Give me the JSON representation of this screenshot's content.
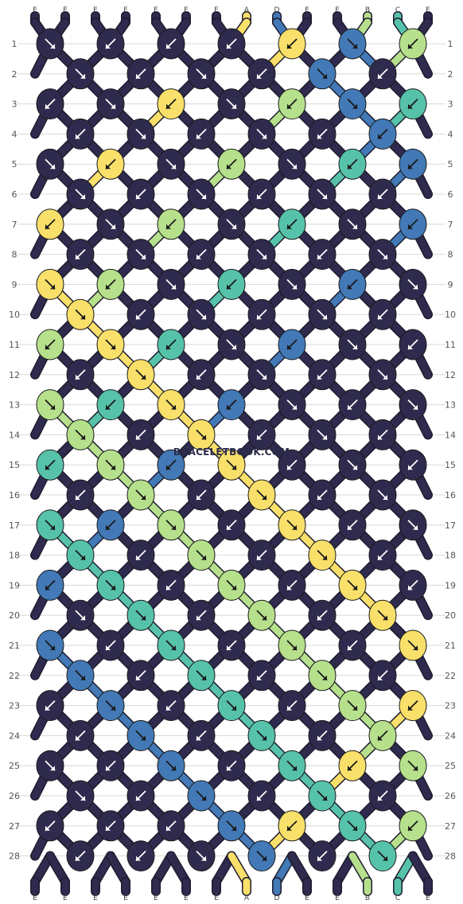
{
  "colors": {
    "E": "#2f2b4e",
    "A": "#f9e06a",
    "D": "#4279b6",
    "B": "#b6e08c",
    "C": "#57c2aa"
  },
  "top_labels": [
    "E",
    "E",
    "E",
    "E",
    "E",
    "E",
    "E",
    "A",
    "D",
    "E",
    "E",
    "B",
    "C",
    "E"
  ],
  "bottom_labels": [
    "E",
    "E",
    "E",
    "E",
    "E",
    "E",
    "E",
    "A",
    "D",
    "E",
    "E",
    "B",
    "C",
    "E"
  ],
  "row_numbers": [
    "1",
    "2",
    "3",
    "4",
    "5",
    "6",
    "7",
    "8",
    "9",
    "10",
    "11",
    "12",
    "13",
    "14",
    "15",
    "16",
    "17",
    "18",
    "19",
    "20",
    "21",
    "22",
    "23",
    "24",
    "25",
    "26",
    "27",
    "28"
  ],
  "watermark": "BRACELETBOOK.COM",
  "knots": [
    [
      "E:rd",
      "E:ld",
      "E:ld",
      "E:ld",
      "A:ld",
      "D:rd",
      "B:ld"
    ],
    [
      "E:rd",
      "E:ld",
      "E:rd",
      "E:ld",
      "D:rd",
      "E:ld"
    ],
    [
      "E:ld",
      "E:rd",
      "A:ld",
      "E:rd",
      "B:ld",
      "D:rd",
      "C:ld"
    ],
    [
      "E:ld",
      "E:rd",
      "E:ld",
      "E:rd",
      "E:ld",
      "D:ld"
    ],
    [
      "E:rd",
      "A:ld",
      "E:rd",
      "B:ld",
      "E:rd",
      "C:ld",
      "D:ld"
    ],
    [
      "E:rd",
      "E:ld",
      "E:rd",
      "E:ld",
      "E:rd",
      "E:ld"
    ],
    [
      "A:ld",
      "E:rd",
      "B:ld",
      "E:rd",
      "C:ld",
      "E:rd",
      "D:ld"
    ],
    [
      "E:ld",
      "E:rd",
      "E:ld",
      "E:rd",
      "E:ld",
      "E:rd"
    ],
    [
      "A:rd",
      "B:ld",
      "E:rd",
      "C:ld",
      "E:rd",
      "D:ld",
      "E:rd"
    ],
    [
      "A:rd",
      "E:ld",
      "E:rd",
      "E:ld",
      "E:rd",
      "E:ld"
    ],
    [
      "B:ld",
      "A:rd",
      "C:ld",
      "E:rd",
      "D:ld",
      "E:rd",
      "E:ld"
    ],
    [
      "E:ld",
      "A:rd",
      "E:ld",
      "E:rd",
      "E:ld",
      "E:rd"
    ],
    [
      "B:rd",
      "C:ld",
      "A:rd",
      "D:ld",
      "E:rd",
      "E:ld",
      "E:rd"
    ],
    [
      "B:rd",
      "E:ld",
      "A:rd",
      "E:ld",
      "E:rd",
      "E:ld"
    ],
    [
      "C:ld",
      "B:rd",
      "D:ld",
      "A:rd",
      "E:ld",
      "E:rd",
      "E:ld"
    ],
    [
      "E:ld",
      "B:rd",
      "E:ld",
      "A:rd",
      "E:ld",
      "E:rd"
    ],
    [
      "C:rd",
      "D:ld",
      "B:rd",
      "E:ld",
      "A:rd",
      "E:ld",
      "E:rd"
    ],
    [
      "C:rd",
      "E:ld",
      "B:rd",
      "E:ld",
      "A:rd",
      "E:ld"
    ],
    [
      "D:ld",
      "C:rd",
      "E:ld",
      "B:rd",
      "E:ld",
      "A:rd",
      "E:ld"
    ],
    [
      "E:rd",
      "C:rd",
      "E:ld",
      "B:rd",
      "E:ld",
      "A:rd"
    ],
    [
      "D:rd",
      "E:ld",
      "C:rd",
      "E:ld",
      "B:rd",
      "E:ld",
      "A:rd"
    ],
    [
      "D:rd",
      "E:ld",
      "C:rd",
      "E:ld",
      "B:rd",
      "E:ld"
    ],
    [
      "E:ld",
      "D:rd",
      "E:ld",
      "C:rd",
      "E:ld",
      "B:rd",
      "A:ld"
    ],
    [
      "E:ld",
      "D:rd",
      "E:ld",
      "C:rd",
      "E:ld",
      "B:ld"
    ],
    [
      "E:rd",
      "E:ld",
      "D:rd",
      "E:ld",
      "C:rd",
      "A:ld",
      "B:rd"
    ],
    [
      "E:rd",
      "E:ld",
      "D:rd",
      "E:ld",
      "C:rd",
      "E:ld"
    ],
    [
      "E:ld",
      "E:ld",
      "E:ld",
      "D:rd",
      "A:ld",
      "C:rd",
      "B:ld"
    ],
    [
      "E:ld",
      "E:ld",
      "E:rd",
      "D:rd",
      "E:ld",
      "C:rd"
    ]
  ]
}
